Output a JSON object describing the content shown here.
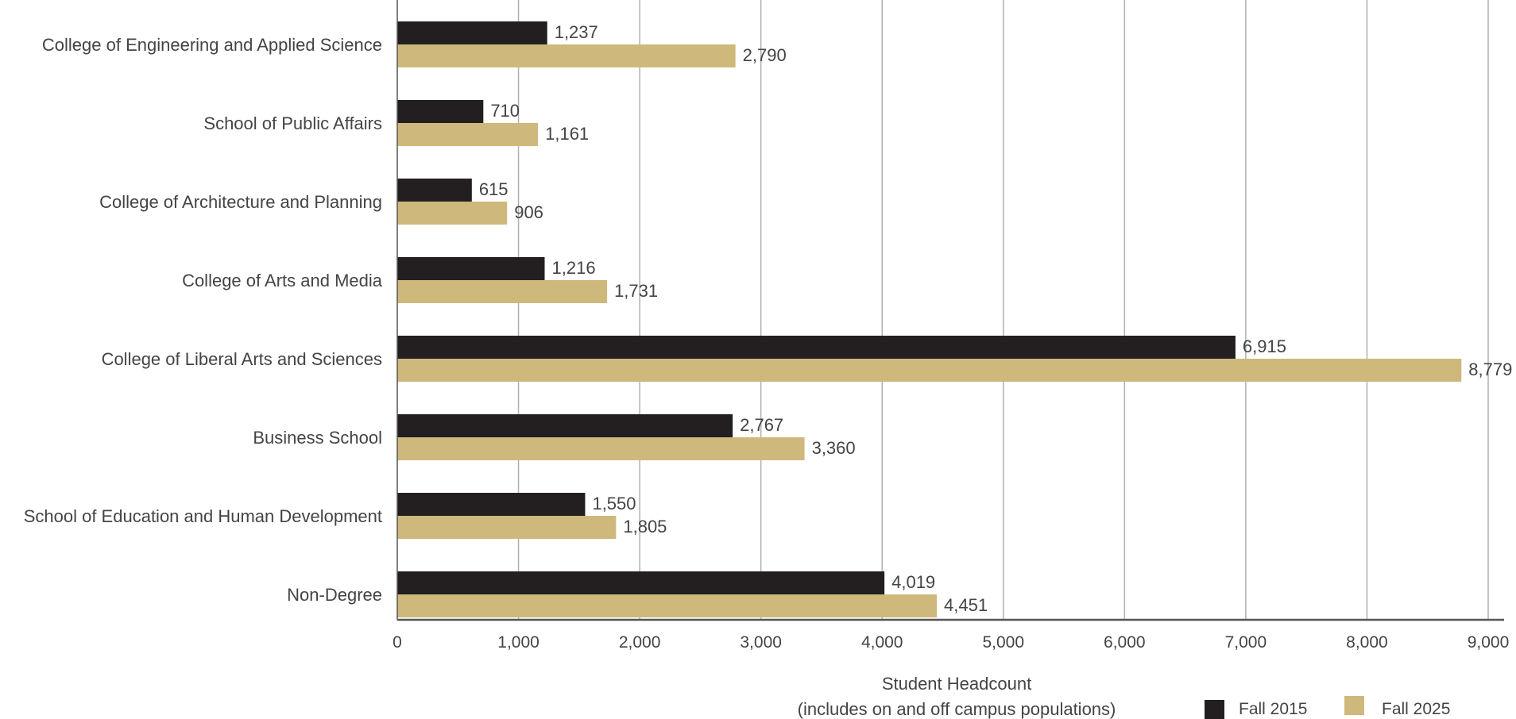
{
  "chart_data": {
    "type": "bar",
    "orientation": "horizontal",
    "categories": [
      "College of Engineering and Applied Science",
      "School of Public Affairs",
      "College of Architecture and Planning",
      "College of Arts and Media",
      "College of Liberal Arts and Sciences",
      "Business School",
      "School of Education and Human Development",
      "Non-Degree"
    ],
    "series": [
      {
        "name": "Fall 2015",
        "color": "#231f20",
        "values": [
          1237,
          710,
          615,
          1216,
          6915,
          2767,
          1550,
          4019
        ],
        "labels": [
          "1,237",
          "710",
          "615",
          "1,216",
          "6,915",
          "2,767",
          "1,550",
          "4,019"
        ]
      },
      {
        "name": "Fall 2025",
        "color": "#cfb87c",
        "values": [
          2790,
          1161,
          906,
          1731,
          8779,
          3360,
          1805,
          4451
        ],
        "labels": [
          "2,790",
          "1,161",
          "906",
          "1,731",
          "8,779",
          "3,360",
          "1,805",
          "4,451"
        ]
      }
    ],
    "xlim": [
      0,
      9000
    ],
    "xticks": [
      0,
      1000,
      2000,
      3000,
      4000,
      5000,
      6000,
      7000,
      8000,
      9000
    ],
    "xtick_labels": [
      "0",
      "1,000",
      "2,000",
      "3,000",
      "4,000",
      "5,000",
      "6,000",
      "7,000",
      "8,000",
      "9,000"
    ],
    "xlabel": "Student Headcount",
    "xlabel_sub": "(includes on and off campus populations)",
    "ylabel": "",
    "title": "",
    "grid": "vertical",
    "legend_position": "bottom-right",
    "gridline_color": "#b0b0b0",
    "axis_color": "#555555"
  }
}
